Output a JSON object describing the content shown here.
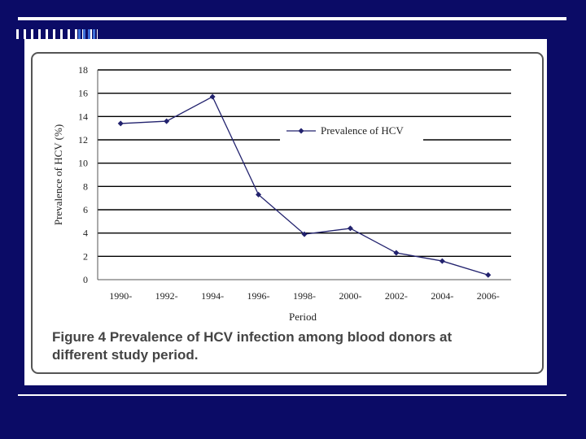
{
  "slide": {
    "colors": {
      "background": "#0b0b66",
      "rule": "#ffffff",
      "accent": "#3b6fd8"
    }
  },
  "figure": {
    "caption_line1": "Figure 4 Prevalence of HCV infection among blood donors at",
    "caption_line2": "different study period."
  },
  "chart_data": {
    "type": "line",
    "title": "",
    "xlabel": "Period",
    "ylabel": "Prevalence of HCV (%)",
    "categories": [
      "1990-",
      "1992-",
      "1994-",
      "1996-",
      "1998-",
      "2000-",
      "2002-",
      "2004-",
      "2006-"
    ],
    "series": [
      {
        "name": "Prevalence of HCV",
        "values": [
          13.4,
          13.6,
          15.7,
          7.3,
          3.9,
          4.4,
          2.3,
          1.6,
          0.4
        ],
        "color": "#22226e"
      }
    ],
    "ylim": [
      0,
      18
    ],
    "yticks": [
      0,
      2,
      4,
      6,
      8,
      10,
      12,
      14,
      16,
      18
    ],
    "grid": true,
    "legend": "top-right"
  }
}
